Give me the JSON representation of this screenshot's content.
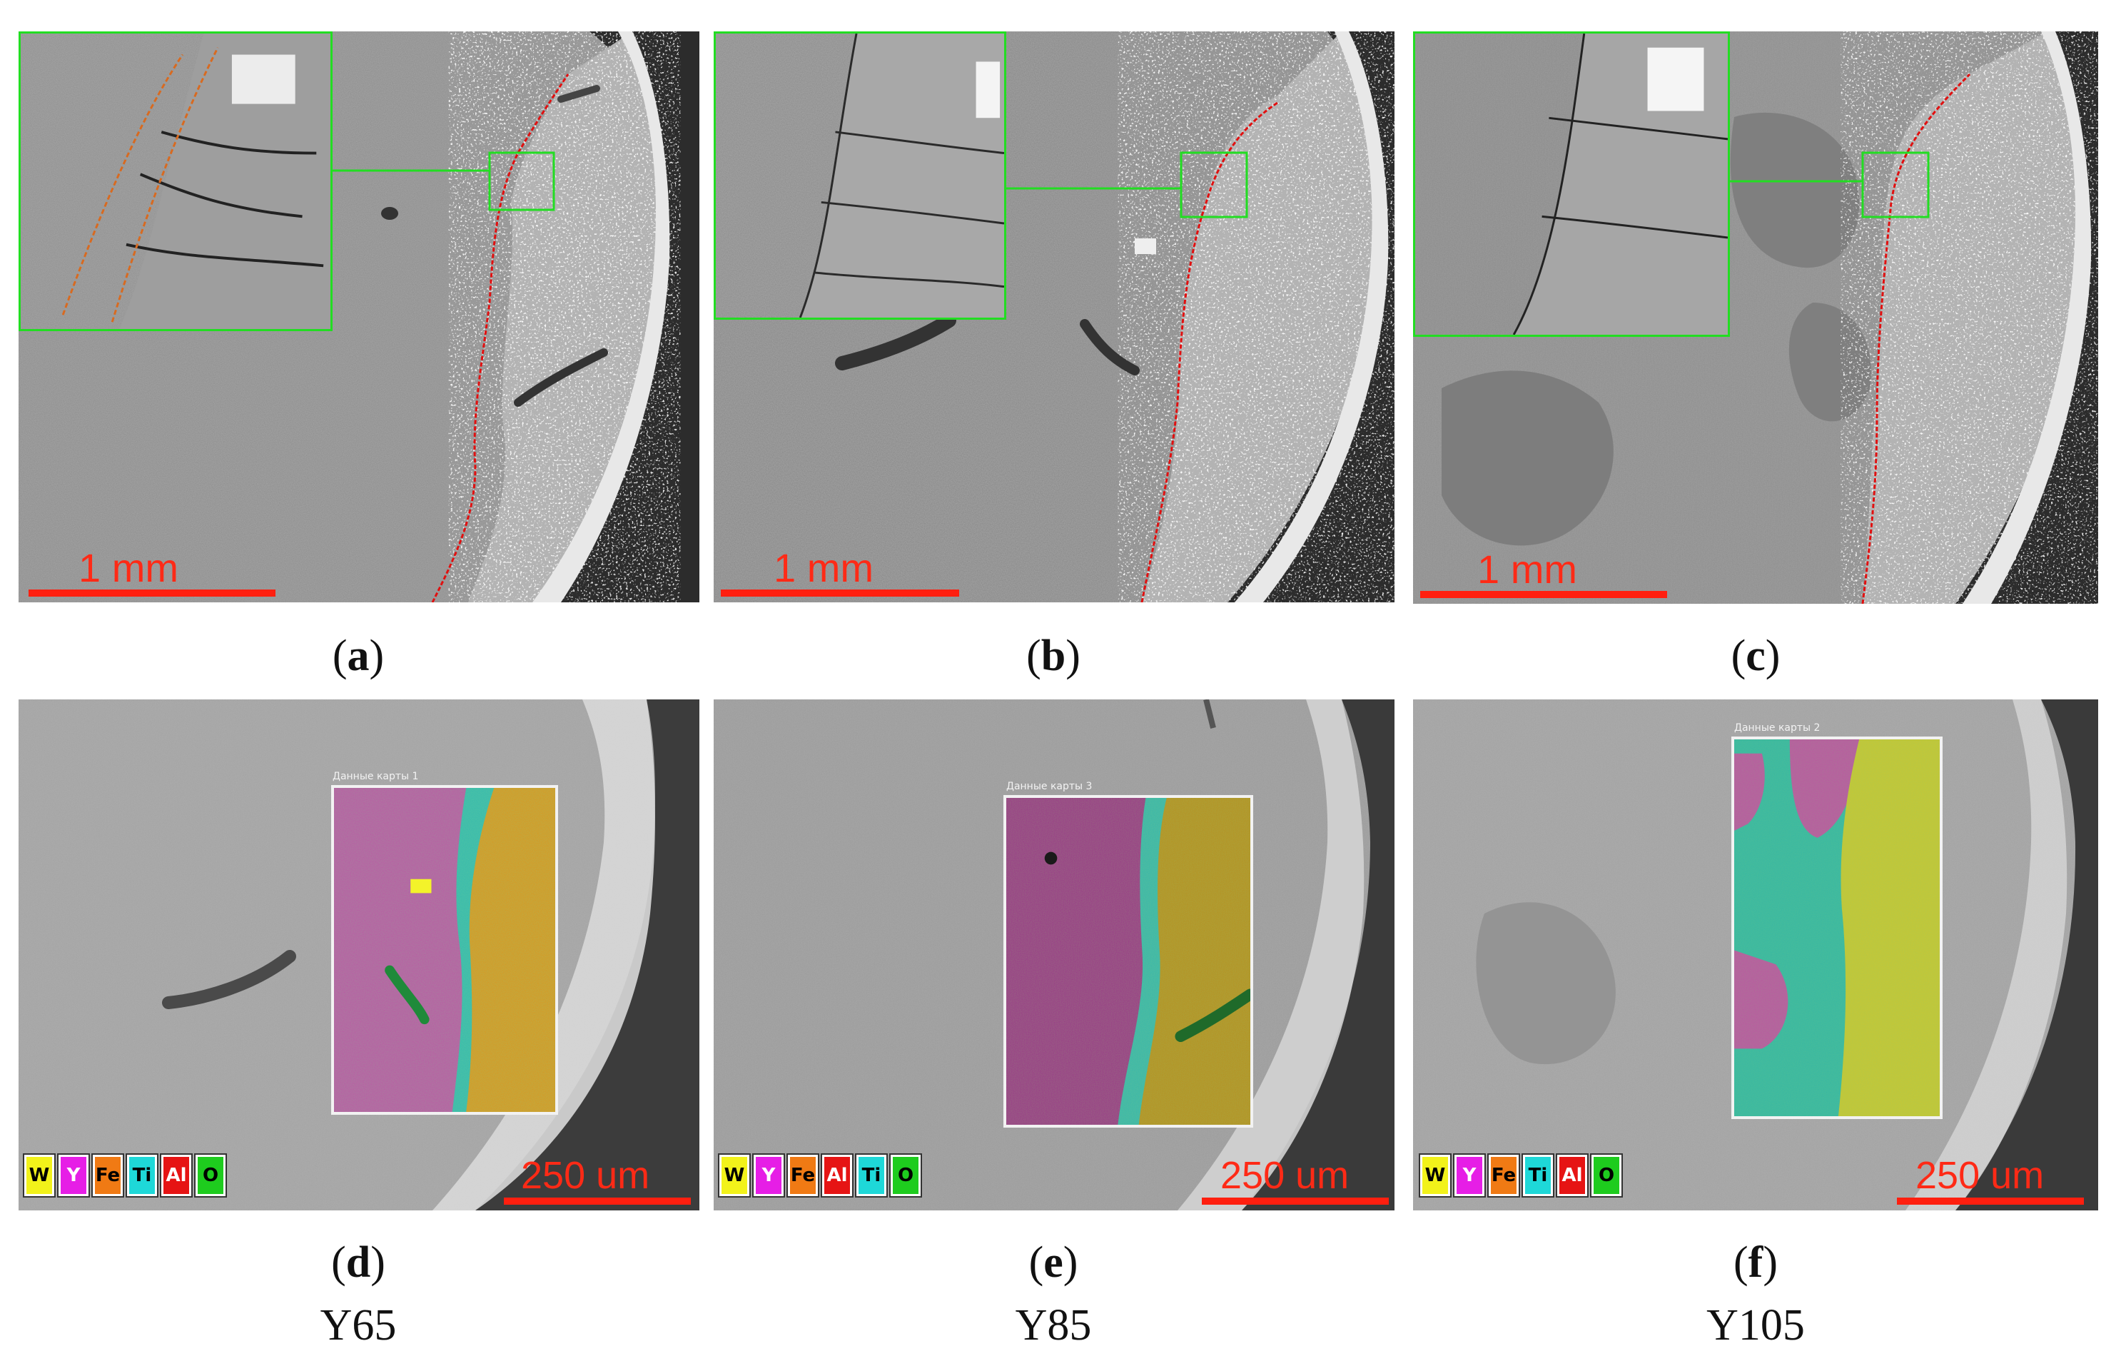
{
  "panels": [
    {
      "id": "a",
      "caption_label": "a",
      "scale_label": "1 mm"
    },
    {
      "id": "b",
      "caption_label": "b",
      "scale_label": "1 mm"
    },
    {
      "id": "c",
      "caption_label": "c",
      "scale_label": "1 mm"
    },
    {
      "id": "d",
      "caption_label": "d",
      "scale_label": "250 um",
      "map_title": "Данные карты 1",
      "sample": "Y65",
      "legend": [
        {
          "label": "W",
          "color": "#f2f21a",
          "text_color": "#000000"
        },
        {
          "label": "Y",
          "color": "#e61ee6",
          "text_color": "#ffffff"
        },
        {
          "label": "Fe",
          "color": "#f07a14",
          "text_color": "#000000"
        },
        {
          "label": "Ti",
          "color": "#1ed8d8",
          "text_color": "#000000"
        },
        {
          "label": "Al",
          "color": "#e61414",
          "text_color": "#ffffff"
        },
        {
          "label": "O",
          "color": "#1ecc1e",
          "text_color": "#000000"
        }
      ]
    },
    {
      "id": "e",
      "caption_label": "e",
      "scale_label": "250 um",
      "map_title": "Данные карты 3",
      "sample": "Y85",
      "legend": [
        {
          "label": "W",
          "color": "#f2f21a",
          "text_color": "#000000"
        },
        {
          "label": "Y",
          "color": "#e61ee6",
          "text_color": "#ffffff"
        },
        {
          "label": "Fe",
          "color": "#f07a14",
          "text_color": "#000000"
        },
        {
          "label": "Al",
          "color": "#e61414",
          "text_color": "#ffffff"
        },
        {
          "label": "Ti",
          "color": "#1ed8d8",
          "text_color": "#000000"
        },
        {
          "label": "O",
          "color": "#1ecc1e",
          "text_color": "#000000"
        }
      ]
    },
    {
      "id": "f",
      "caption_label": "f",
      "scale_label": "250 um",
      "map_title": "Данные карты 2",
      "sample": "Y105",
      "legend": [
        {
          "label": "W",
          "color": "#f2f21a",
          "text_color": "#000000"
        },
        {
          "label": "Y",
          "color": "#e61ee6",
          "text_color": "#ffffff"
        },
        {
          "label": "Fe",
          "color": "#f07a14",
          "text_color": "#000000"
        },
        {
          "label": "Ti",
          "color": "#1ed8d8",
          "text_color": "#000000"
        },
        {
          "label": "Al",
          "color": "#e61414",
          "text_color": "#ffffff"
        },
        {
          "label": "O",
          "color": "#1ecc1e",
          "text_color": "#000000"
        }
      ]
    }
  ],
  "colors": {
    "scale_red": "#ff1f0f",
    "interface_line": "#e01010",
    "inset_frame": "#22dd22",
    "fiber_trace": "#d86a20"
  }
}
